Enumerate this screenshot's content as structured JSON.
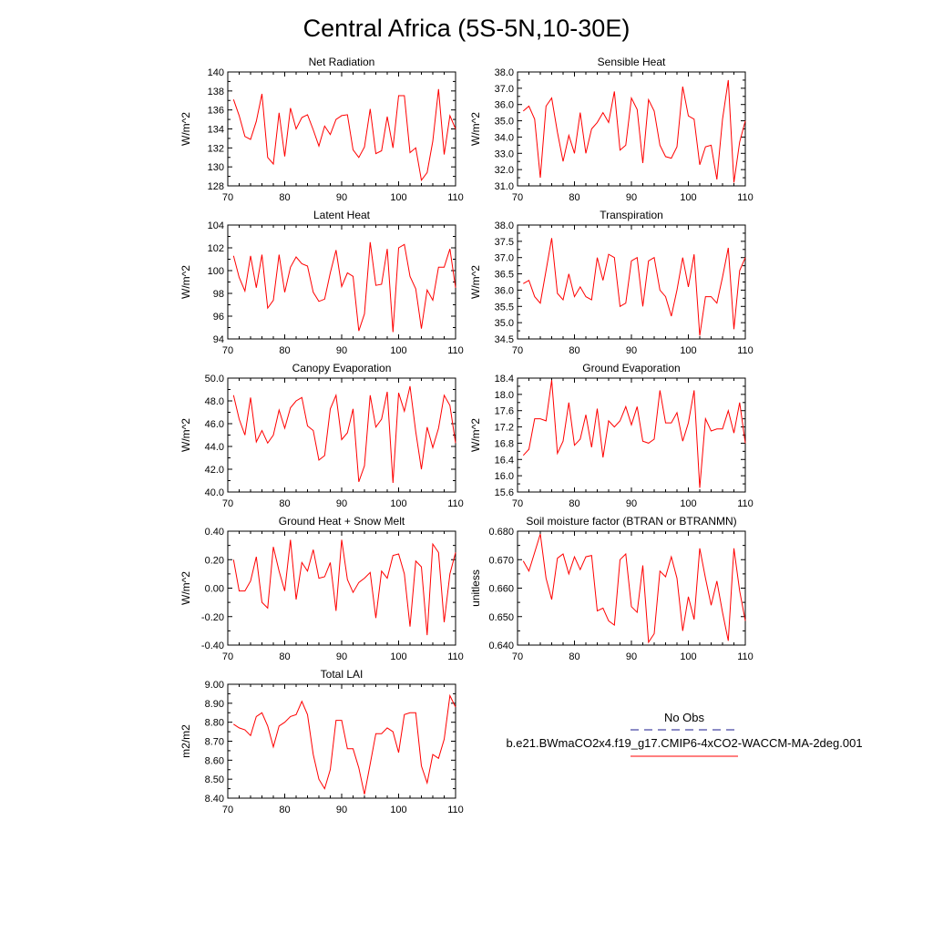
{
  "figure": {
    "title": "Central Africa (5S-5N,10-30E)",
    "legend": {
      "obs_label": "No Obs",
      "obs_color": "#1a1a8c",
      "model_label": "b.e21.BWmaCO2x4.f19_g17.CMIP6-4xCO2-WACCM-MA-2deg.001",
      "model_color": "#ff0000"
    }
  },
  "chart_data": [
    {
      "type": "line",
      "title": "Net Radiation",
      "ylabel": "W/m^2",
      "xlim": [
        70,
        110
      ],
      "ylim": [
        128,
        140
      ],
      "xticks": [
        70,
        80,
        90,
        100,
        110
      ],
      "yticks": [
        128,
        130,
        132,
        134,
        136,
        138,
        140
      ],
      "ytick_labels": [
        "128",
        "130",
        "132",
        "134",
        "136",
        "138",
        "140"
      ],
      "x": [
        71,
        72,
        73,
        74,
        75,
        76,
        77,
        78,
        79,
        80,
        81,
        82,
        83,
        84,
        85,
        86,
        87,
        88,
        89,
        90,
        91,
        92,
        93,
        94,
        95,
        96,
        97,
        98,
        99,
        100,
        101,
        102,
        103,
        104,
        105,
        106,
        107,
        108,
        109,
        110
      ],
      "series": [
        {
          "values": [
            137.1,
            135.4,
            133.2,
            132.9,
            134.8,
            137.7,
            131.0,
            130.3,
            135.7,
            131.1,
            136.2,
            134.0,
            135.2,
            135.5,
            133.9,
            132.2,
            134.3,
            133.4,
            135.0,
            135.4,
            135.5,
            131.8,
            131.0,
            132.1,
            136.1,
            131.4,
            131.7,
            135.3,
            132.0,
            137.5,
            137.5,
            131.5,
            132.0,
            128.6,
            129.4,
            132.7,
            138.2,
            131.3,
            135.4,
            134.0
          ]
        }
      ]
    },
    {
      "type": "line",
      "title": "Sensible Heat",
      "ylabel": "W/m^2",
      "xlim": [
        70,
        110
      ],
      "ylim": [
        31,
        38
      ],
      "xticks": [
        70,
        80,
        90,
        100,
        110
      ],
      "yticks": [
        31,
        32,
        33,
        34,
        35,
        36,
        37,
        38
      ],
      "ytick_labels": [
        "31.0",
        "32.0",
        "33.0",
        "34.0",
        "35.0",
        "36.0",
        "37.0",
        "38.0"
      ],
      "x": [
        71,
        72,
        73,
        74,
        75,
        76,
        77,
        78,
        79,
        80,
        81,
        82,
        83,
        84,
        85,
        86,
        87,
        88,
        89,
        90,
        91,
        92,
        93,
        94,
        95,
        96,
        97,
        98,
        99,
        100,
        101,
        102,
        103,
        104,
        105,
        106,
        107,
        108,
        109,
        110
      ],
      "series": [
        {
          "values": [
            35.6,
            35.9,
            35.1,
            31.5,
            35.9,
            36.4,
            34.3,
            32.5,
            34.1,
            33.0,
            35.5,
            33.0,
            34.5,
            34.9,
            35.5,
            34.9,
            36.8,
            33.2,
            33.5,
            36.4,
            35.7,
            32.4,
            36.3,
            35.6,
            33.5,
            32.8,
            32.7,
            33.4,
            37.1,
            35.3,
            35.1,
            32.3,
            33.4,
            33.5,
            31.4,
            35.1,
            37.5,
            31.2,
            33.7,
            35.0
          ]
        }
      ]
    },
    {
      "type": "line",
      "title": "Latent Heat",
      "ylabel": "W/m^2",
      "xlim": [
        70,
        110
      ],
      "ylim": [
        94,
        104
      ],
      "xticks": [
        70,
        80,
        90,
        100,
        110
      ],
      "yticks": [
        94,
        96,
        98,
        100,
        102,
        104
      ],
      "ytick_labels": [
        "94",
        "96",
        "98",
        "100",
        "102",
        "104"
      ],
      "x": [
        71,
        72,
        73,
        74,
        75,
        76,
        77,
        78,
        79,
        80,
        81,
        82,
        83,
        84,
        85,
        86,
        87,
        88,
        89,
        90,
        91,
        92,
        93,
        94,
        95,
        96,
        97,
        98,
        99,
        100,
        101,
        102,
        103,
        104,
        105,
        106,
        107,
        108,
        109,
        110
      ],
      "series": [
        {
          "values": [
            101.3,
            99.4,
            98.2,
            101.3,
            98.5,
            101.4,
            96.7,
            97.4,
            101.4,
            98.1,
            100.3,
            101.2,
            100.6,
            100.4,
            98.1,
            97.3,
            97.5,
            99.8,
            101.8,
            98.6,
            99.8,
            99.5,
            94.7,
            96.2,
            102.5,
            98.7,
            98.8,
            101.9,
            94.6,
            102.0,
            102.3,
            99.5,
            98.4,
            94.9,
            98.3,
            97.4,
            100.3,
            100.3,
            101.9,
            98.5
          ]
        }
      ]
    },
    {
      "type": "line",
      "title": "Transpiration",
      "ylabel": "W/m^2",
      "xlim": [
        70,
        110
      ],
      "ylim": [
        34.5,
        38
      ],
      "xticks": [
        70,
        80,
        90,
        100,
        110
      ],
      "yticks": [
        34.5,
        35,
        35.5,
        36,
        36.5,
        37,
        37.5,
        38
      ],
      "ytick_labels": [
        "34.5",
        "35.0",
        "35.5",
        "36.0",
        "36.5",
        "37.0",
        "37.5",
        "38.0"
      ],
      "x": [
        71,
        72,
        73,
        74,
        75,
        76,
        77,
        78,
        79,
        80,
        81,
        82,
        83,
        84,
        85,
        86,
        87,
        88,
        89,
        90,
        91,
        92,
        93,
        94,
        95,
        96,
        97,
        98,
        99,
        100,
        101,
        102,
        103,
        104,
        105,
        106,
        107,
        108,
        109,
        110
      ],
      "series": [
        {
          "values": [
            36.2,
            36.3,
            35.8,
            35.6,
            36.6,
            37.6,
            35.9,
            35.7,
            36.5,
            35.8,
            36.1,
            35.8,
            35.7,
            37.0,
            36.3,
            37.1,
            37.0,
            35.5,
            35.6,
            36.9,
            37.0,
            35.5,
            36.9,
            37.0,
            36.0,
            35.8,
            35.2,
            36.0,
            37.0,
            36.1,
            37.1,
            34.6,
            35.8,
            35.8,
            35.6,
            36.4,
            37.3,
            34.8,
            36.6,
            37.0
          ]
        }
      ]
    },
    {
      "type": "line",
      "title": "Canopy Evaporation",
      "ylabel": "W/m^2",
      "xlim": [
        70,
        110
      ],
      "ylim": [
        40,
        50
      ],
      "xticks": [
        70,
        80,
        90,
        100,
        110
      ],
      "yticks": [
        40,
        42,
        44,
        46,
        48,
        50
      ],
      "ytick_labels": [
        "40.0",
        "42.0",
        "44.0",
        "46.0",
        "48.0",
        "50.0"
      ],
      "x": [
        71,
        72,
        73,
        74,
        75,
        76,
        77,
        78,
        79,
        80,
        81,
        82,
        83,
        84,
        85,
        86,
        87,
        88,
        89,
        90,
        91,
        92,
        93,
        94,
        95,
        96,
        97,
        98,
        99,
        100,
        101,
        102,
        103,
        104,
        105,
        106,
        107,
        108,
        109,
        110
      ],
      "series": [
        {
          "values": [
            48.5,
            46.4,
            45.0,
            48.3,
            44.4,
            45.4,
            44.3,
            45.0,
            47.2,
            45.6,
            47.4,
            48.0,
            48.3,
            45.8,
            45.4,
            42.8,
            43.2,
            47.3,
            48.5,
            44.6,
            45.2,
            47.3,
            40.9,
            42.3,
            48.5,
            45.7,
            46.4,
            48.8,
            40.8,
            48.7,
            47.1,
            49.3,
            45.3,
            42.0,
            45.7,
            43.9,
            45.6,
            48.5,
            47.6,
            44.3
          ]
        }
      ]
    },
    {
      "type": "line",
      "title": "Ground Evaporation",
      "ylabel": "W/m^2",
      "xlim": [
        70,
        110
      ],
      "ylim": [
        15.6,
        18.4
      ],
      "xticks": [
        70,
        80,
        90,
        100,
        110
      ],
      "yticks": [
        15.6,
        16.0,
        16.4,
        16.8,
        17.2,
        17.6,
        18.0,
        18.4
      ],
      "ytick_labels": [
        "15.6",
        "16.0",
        "16.4",
        "16.8",
        "17.2",
        "17.6",
        "18.0",
        "18.4"
      ],
      "x": [
        71,
        72,
        73,
        74,
        75,
        76,
        77,
        78,
        79,
        80,
        81,
        82,
        83,
        84,
        85,
        86,
        87,
        88,
        89,
        90,
        91,
        92,
        93,
        94,
        95,
        96,
        97,
        98,
        99,
        100,
        101,
        102,
        103,
        104,
        105,
        106,
        107,
        108,
        109,
        110
      ],
      "series": [
        {
          "values": [
            16.5,
            16.65,
            17.4,
            17.4,
            17.35,
            18.35,
            16.55,
            16.85,
            17.8,
            16.75,
            16.9,
            17.5,
            16.7,
            17.65,
            16.45,
            17.35,
            17.2,
            17.35,
            17.7,
            17.25,
            17.7,
            16.85,
            16.8,
            16.9,
            18.1,
            17.3,
            17.3,
            17.55,
            16.85,
            17.3,
            18.1,
            15.7,
            17.4,
            17.1,
            17.15,
            17.15,
            17.6,
            17.05,
            17.8,
            16.8
          ]
        }
      ]
    },
    {
      "type": "line",
      "title": "Ground Heat + Snow Melt",
      "ylabel": "W/m^2",
      "xlim": [
        70,
        110
      ],
      "ylim": [
        -0.4,
        0.4
      ],
      "xticks": [
        70,
        80,
        90,
        100,
        110
      ],
      "yticks": [
        -0.4,
        -0.2,
        0,
        0.2,
        0.4
      ],
      "ytick_labels": [
        "-0.40",
        "-0.20",
        "0.00",
        "0.20",
        "0.40"
      ],
      "x": [
        71,
        72,
        73,
        74,
        75,
        76,
        77,
        78,
        79,
        80,
        81,
        82,
        83,
        84,
        85,
        86,
        87,
        88,
        89,
        90,
        91,
        92,
        93,
        94,
        95,
        96,
        97,
        98,
        99,
        100,
        101,
        102,
        103,
        104,
        105,
        106,
        107,
        108,
        109,
        110
      ],
      "series": [
        {
          "values": [
            0.2,
            -0.02,
            -0.02,
            0.05,
            0.22,
            -0.1,
            -0.14,
            0.29,
            0.12,
            -0.02,
            0.34,
            -0.08,
            0.18,
            0.12,
            0.27,
            0.07,
            0.08,
            0.18,
            -0.16,
            0.34,
            0.06,
            -0.03,
            0.04,
            0.07,
            0.11,
            -0.21,
            0.12,
            0.07,
            0.23,
            0.24,
            0.1,
            -0.27,
            0.19,
            0.15,
            -0.33,
            0.31,
            0.25,
            -0.24,
            0.1,
            0.25
          ]
        }
      ]
    },
    {
      "type": "line",
      "title": "Soil moisture factor (BTRAN or BTRANMN)",
      "ylabel": "unitless",
      "xlim": [
        70,
        110
      ],
      "ylim": [
        0.64,
        0.68
      ],
      "xticks": [
        70,
        80,
        90,
        100,
        110
      ],
      "yticks": [
        0.64,
        0.65,
        0.66,
        0.67,
        0.68
      ],
      "ytick_labels": [
        "0.640",
        "0.650",
        "0.660",
        "0.670",
        "0.680"
      ],
      "x": [
        71,
        72,
        73,
        74,
        75,
        76,
        77,
        78,
        79,
        80,
        81,
        82,
        83,
        84,
        85,
        86,
        87,
        88,
        89,
        90,
        91,
        92,
        93,
        94,
        95,
        96,
        97,
        98,
        99,
        100,
        101,
        102,
        103,
        104,
        105,
        106,
        107,
        108,
        109,
        110
      ],
      "series": [
        {
          "values": [
            0.6695,
            0.666,
            0.6725,
            0.679,
            0.6635,
            0.656,
            0.6705,
            0.672,
            0.665,
            0.671,
            0.6665,
            0.671,
            0.6715,
            0.652,
            0.653,
            0.6485,
            0.647,
            0.67,
            0.672,
            0.6535,
            0.6515,
            0.668,
            0.641,
            0.644,
            0.666,
            0.664,
            0.671,
            0.6635,
            0.645,
            0.657,
            0.649,
            0.674,
            0.6635,
            0.654,
            0.6625,
            0.6515,
            0.6415,
            0.674,
            0.659,
            0.6485
          ]
        }
      ]
    },
    {
      "type": "line",
      "title": "Total LAI",
      "ylabel": "m2/m2",
      "xlim": [
        70,
        110
      ],
      "ylim": [
        8.4,
        9.0
      ],
      "xticks": [
        70,
        80,
        90,
        100,
        110
      ],
      "yticks": [
        8.4,
        8.5,
        8.6,
        8.7,
        8.8,
        8.9,
        9.0
      ],
      "ytick_labels": [
        "8.40",
        "8.50",
        "8.60",
        "8.70",
        "8.80",
        "8.90",
        "9.00"
      ],
      "x": [
        71,
        72,
        73,
        74,
        75,
        76,
        77,
        78,
        79,
        80,
        81,
        82,
        83,
        84,
        85,
        86,
        87,
        88,
        89,
        90,
        91,
        92,
        93,
        94,
        95,
        96,
        97,
        98,
        99,
        100,
        101,
        102,
        103,
        104,
        105,
        106,
        107,
        108,
        109,
        110
      ],
      "series": [
        {
          "values": [
            8.79,
            8.77,
            8.76,
            8.73,
            8.83,
            8.85,
            8.78,
            8.67,
            8.78,
            8.8,
            8.83,
            8.84,
            8.91,
            8.84,
            8.63,
            8.5,
            8.45,
            8.55,
            8.81,
            8.81,
            8.66,
            8.66,
            8.56,
            8.42,
            8.58,
            8.74,
            8.74,
            8.77,
            8.75,
            8.64,
            8.84,
            8.85,
            8.85,
            8.57,
            8.48,
            8.63,
            8.61,
            8.71,
            8.94,
            8.88
          ]
        }
      ]
    }
  ]
}
